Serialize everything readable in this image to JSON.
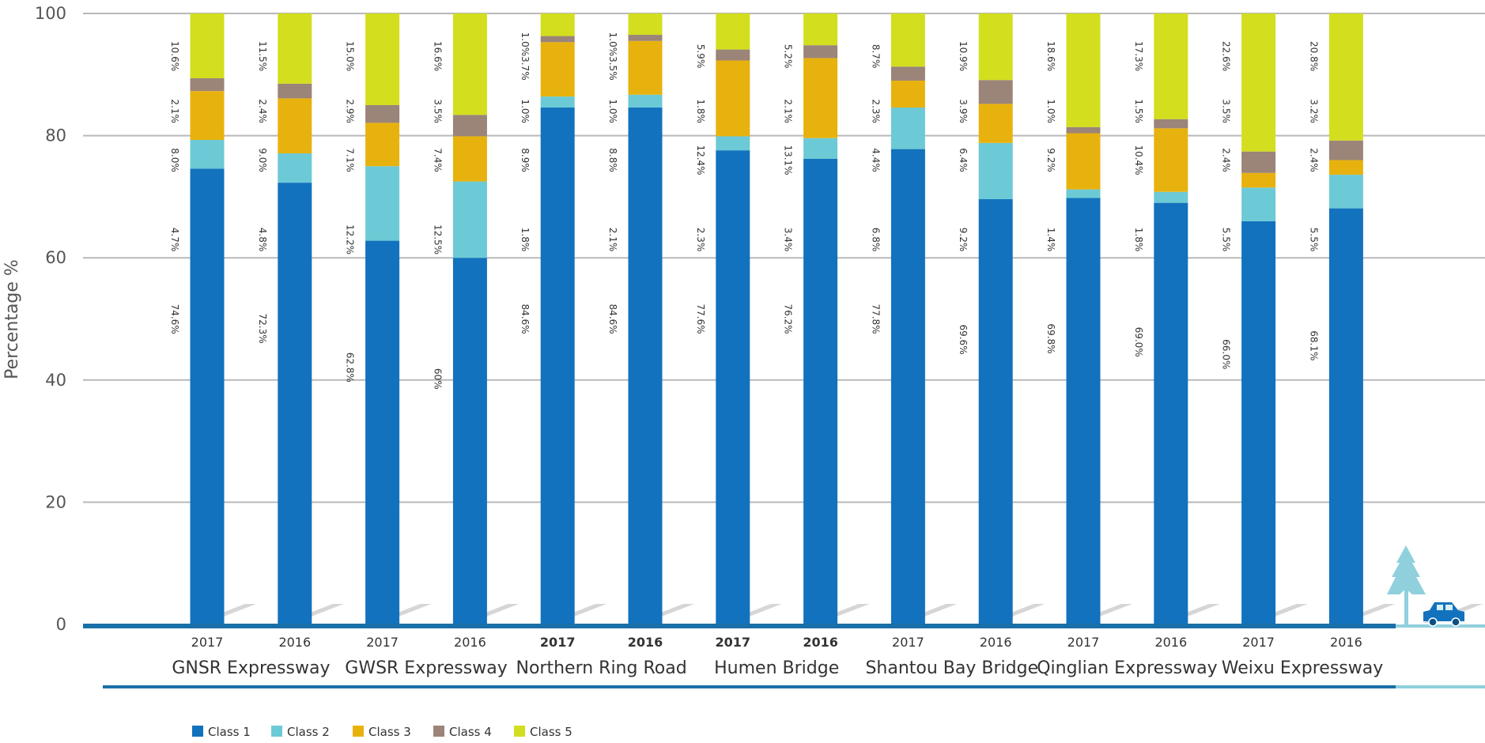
{
  "chart_data": {
    "type": "bar",
    "stacked": true,
    "ylabel": "Percentage %",
    "ylim": [
      0,
      100
    ],
    "yticks": [
      "0",
      "20",
      "40",
      "60",
      "80",
      "100"
    ],
    "grid": true,
    "legend_position": "bottom-left",
    "groups": [
      "GNSR Expressway",
      "GWSR Expressway",
      "Northern Ring Road",
      "Humen Bridge",
      "Shantou Bay Bridge",
      "Qinglian Expressway",
      "Weixu Expressway"
    ],
    "categories": [
      "2017",
      "2016",
      "2017",
      "2016",
      "2017",
      "2016",
      "2017",
      "2016",
      "2017",
      "2016",
      "2017",
      "2016",
      "2017",
      "2016"
    ],
    "bold_categories": [
      false,
      false,
      false,
      false,
      true,
      true,
      true,
      true,
      false,
      false,
      false,
      false,
      false,
      false
    ],
    "series": [
      {
        "name": "Class 1",
        "color": "#1272bd",
        "values": [
          74.6,
          72.3,
          62.8,
          60.0,
          84.6,
          84.6,
          77.6,
          76.2,
          77.8,
          69.6,
          69.8,
          69.0,
          66.0,
          68.1
        ],
        "labels": [
          "74.6%",
          "72.3%",
          "62.8%",
          "60%",
          "84.6%",
          "84.6%",
          "77.6%",
          "76.2%",
          "77.8%",
          "69.6%",
          "69.8%",
          "69.0%",
          "66.0%",
          "68.1%"
        ]
      },
      {
        "name": "Class 2",
        "color": "#6ccad6",
        "values": [
          4.7,
          4.8,
          12.2,
          12.5,
          1.8,
          2.1,
          2.3,
          3.4,
          6.8,
          9.2,
          1.4,
          1.8,
          5.5,
          5.5
        ],
        "labels": [
          "4.7%",
          "4.8%",
          "12.2%",
          "12.5%",
          "1.8%",
          "2.1%",
          "2.3%",
          "3.4%",
          "6.8%",
          "9.2%",
          "1.4%",
          "1.8%",
          "5.5%",
          "5.5%"
        ]
      },
      {
        "name": "Class 3",
        "color": "#e8b20e",
        "values": [
          8.0,
          9.0,
          7.1,
          7.4,
          8.9,
          8.8,
          12.4,
          13.1,
          4.4,
          6.4,
          9.2,
          10.4,
          2.4,
          2.4
        ],
        "labels": [
          "8.0%",
          "9.0%",
          "7.1%",
          "7.4%",
          "8.9%",
          "8.8%",
          "12.4%",
          "13.1%",
          "4.4%",
          "6.4%",
          "9.2%",
          "10.4%",
          "2.4%",
          "2.4%"
        ]
      },
      {
        "name": "Class 4",
        "color": "#9b8478",
        "values": [
          2.1,
          2.4,
          2.9,
          3.5,
          1.0,
          1.0,
          1.8,
          2.1,
          2.3,
          3.9,
          1.0,
          1.5,
          3.5,
          3.2
        ],
        "labels": [
          "2.1%",
          "2.4%",
          "2.9%",
          "3.5%",
          "1.0%",
          "1.0%",
          "1.8%",
          "2.1%",
          "2.3%",
          "3.9%",
          "1.0%",
          "1.5%",
          "3.5%",
          "3.2%"
        ]
      },
      {
        "name": "Class 5",
        "color": "#d3de1e",
        "values": [
          10.6,
          11.5,
          15.0,
          16.6,
          3.7,
          3.5,
          5.9,
          5.2,
          8.7,
          10.9,
          18.6,
          17.3,
          22.6,
          20.8
        ],
        "labels": [
          "10.6%",
          "11.5%",
          "15.0%",
          "16.6%",
          "1.0%3.7%",
          "1.0%3.5%",
          "5.9%",
          "5.2%",
          "8.7%",
          "10.9%",
          "18.6%",
          "17.3%",
          "22.6%",
          "20.8%"
        ]
      }
    ]
  },
  "decor": {
    "tree_icon": "tree-icon",
    "car_icon": "car-icon",
    "axis_color": "#1a6fa8",
    "accent_color": "#8fd0dc"
  }
}
